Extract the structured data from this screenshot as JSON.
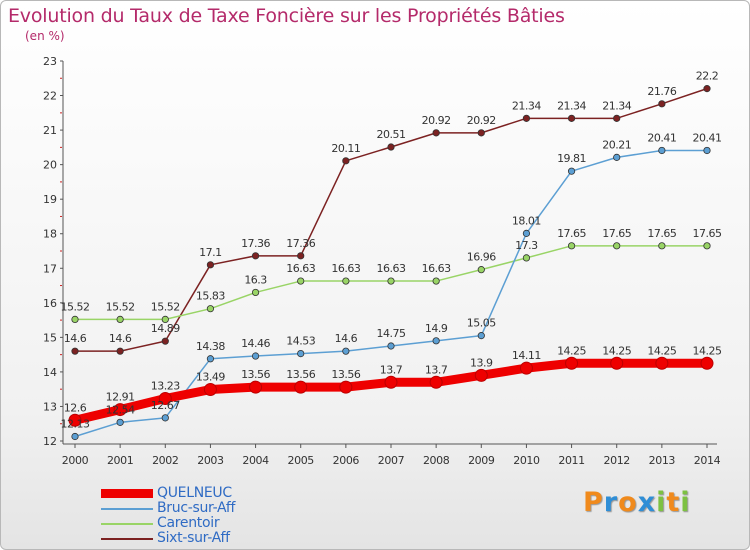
{
  "title": "Evolution du Taux de Taxe Foncière sur les Propriétés Bâties",
  "subtitle": "(en %)",
  "chart_data": {
    "type": "line",
    "title": "Evolution du Taux de Taxe Foncière sur les Propriétés Bâties",
    "ylabel": "(en %)",
    "x": [
      "2000",
      "2001",
      "2002",
      "2003",
      "2004",
      "2005",
      "2006",
      "2007",
      "2008",
      "2009",
      "2010",
      "2011",
      "2012",
      "2013",
      "2014"
    ],
    "ylim": [
      12,
      23
    ],
    "yticks": [
      12,
      13,
      14,
      15,
      16,
      17,
      18,
      19,
      20,
      21,
      22,
      23
    ],
    "grid": false,
    "legend_position": "bottom-left",
    "series": [
      {
        "name": "QUELNEUC",
        "color": "#ee0000",
        "values": [
          12.6,
          12.91,
          13.23,
          13.49,
          13.56,
          13.56,
          13.56,
          13.7,
          13.7,
          13.9,
          14.11,
          14.25,
          14.25,
          14.25,
          14.25
        ],
        "labels": [
          "12.6",
          "12.91",
          "13.23",
          "13.49",
          "13.56",
          "13.56",
          "13.56",
          "13.7",
          "13.7",
          "13.9",
          "14.11",
          "14.25",
          "14.25",
          "14.25",
          "14.25"
        ]
      },
      {
        "name": "Bruc-sur-Aff",
        "color": "#5c9fd3",
        "values": [
          12.13,
          12.54,
          12.67,
          14.38,
          14.46,
          14.53,
          14.6,
          14.75,
          14.9,
          15.05,
          18.01,
          19.81,
          20.21,
          20.41,
          20.41
        ],
        "labels": [
          "12.13",
          "12.54",
          "12.67",
          "14.38",
          "14.46",
          "14.53",
          "14.6",
          "14.75",
          "14.9",
          "15.05",
          "18.01",
          "19.81",
          "20.21",
          "20.41",
          "20.41"
        ]
      },
      {
        "name": "Carentoir",
        "color": "#99d466",
        "values": [
          15.52,
          15.52,
          15.52,
          15.83,
          16.3,
          16.63,
          16.63,
          16.63,
          16.63,
          16.96,
          17.3,
          17.65,
          17.65,
          17.65,
          17.65
        ],
        "labels": [
          "15.52",
          "15.52",
          "15.52",
          "15.83",
          "16.3",
          "16.63",
          "16.63",
          "16.63",
          "16.63",
          "16.96",
          "17.3",
          "17.65",
          "17.65",
          "17.65",
          "17.65"
        ]
      },
      {
        "name": "Sixt-sur-Aff",
        "color": "#7c2222",
        "values": [
          14.6,
          14.6,
          14.89,
          17.1,
          17.36,
          17.36,
          20.11,
          20.51,
          20.92,
          20.92,
          21.34,
          21.34,
          21.34,
          21.76,
          22.2
        ],
        "labels": [
          "14.6",
          "14.6",
          "14.89",
          "17.1",
          "17.36",
          "17.36",
          "20.11",
          "20.51",
          "20.92",
          "20.92",
          "21.34",
          "21.34",
          "21.34",
          "21.76",
          "22.2"
        ]
      }
    ]
  },
  "legend": [
    {
      "name": "QUELNEUC",
      "color": "#ee0000"
    },
    {
      "name": "Bruc-sur-Aff",
      "color": "#5c9fd3"
    },
    {
      "name": "Carentoir",
      "color": "#99d466"
    },
    {
      "name": "Sixt-sur-Aff",
      "color": "#7c2222"
    }
  ],
  "logo": {
    "letters": [
      "P",
      "r",
      "o",
      "x",
      "i",
      "t",
      "i"
    ],
    "colors": [
      "#f08a1c",
      "#2f8ed6",
      "#f08a1c",
      "#2f8ed6",
      "#7dc142",
      "#f08a1c",
      "#7dc142"
    ]
  }
}
